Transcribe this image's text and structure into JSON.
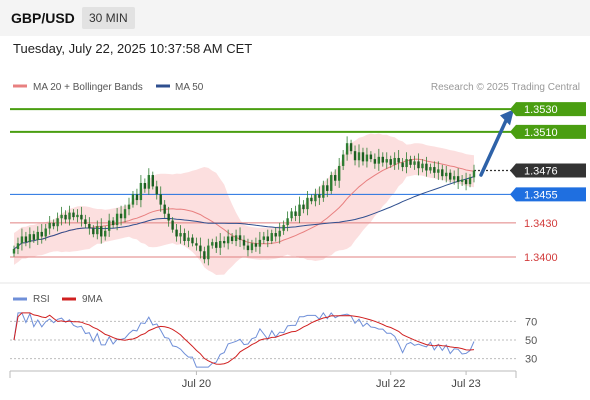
{
  "header": {
    "symbol": "GBP/USD",
    "timeframe": "30 MIN",
    "datetime": "Tuesday, July 22, 2025 10:37:58 AM CET"
  },
  "legend": {
    "bb_label": "MA 20 + Bollinger Bands",
    "ma50_label": "MA 50",
    "credit": "Research © 2025 Trading Central",
    "rsi_label": "RSI",
    "rsi_ma_label": "9MA"
  },
  "colors": {
    "candle": "#2e7d32",
    "ma20": "#e88080",
    "band_fill": "#fbd4d4",
    "ma50": "#2f4f8f",
    "resistance": "#4a9e11",
    "pivot": "#1f6fe0",
    "support": "#e08080",
    "current": "#333333",
    "arrow": "#2e62a8",
    "rsi": "#6f8fd8",
    "rsi_ma": "#d02020"
  },
  "chart_data": [
    {
      "type": "candlestick",
      "ylim": [
        1.3385,
        1.3545
      ],
      "x_ticks": [
        {
          "label": "Jul 20",
          "index": 46
        },
        {
          "label": "Jul 22",
          "index": 95
        },
        {
          "label": "Jul 23",
          "index": 114
        }
      ],
      "levels": [
        {
          "value": 1.353,
          "label": "1.3530",
          "kind": "resistance"
        },
        {
          "value": 1.351,
          "label": "1.3510",
          "kind": "resistance"
        },
        {
          "value": 1.3476,
          "label": "1.3476",
          "kind": "current"
        },
        {
          "value": 1.3455,
          "label": "1.3455",
          "kind": "pivot"
        },
        {
          "value": 1.343,
          "label": "1.3430",
          "kind": "support"
        },
        {
          "value": 1.34,
          "label": "1.3400",
          "kind": "support"
        }
      ],
      "forecast_arrow": {
        "from": 1.3472,
        "to": 1.3528
      },
      "closes": [
        1.3407,
        1.3412,
        1.3418,
        1.3413,
        1.342,
        1.3415,
        1.3422,
        1.3418,
        1.3425,
        1.343,
        1.3427,
        1.3434,
        1.3437,
        1.3433,
        1.3439,
        1.3435,
        1.3437,
        1.3433,
        1.3429,
        1.3425,
        1.342,
        1.3427,
        1.3418,
        1.3423,
        1.3432,
        1.3428,
        1.3438,
        1.3434,
        1.3442,
        1.3446,
        1.3455,
        1.345,
        1.3465,
        1.346,
        1.3472,
        1.3462,
        1.3455,
        1.3446,
        1.3438,
        1.3432,
        1.3424,
        1.3418,
        1.3421,
        1.3414,
        1.3417,
        1.3412,
        1.341,
        1.3405,
        1.3398,
        1.341,
        1.3413,
        1.3408,
        1.3414,
        1.3412,
        1.3418,
        1.3414,
        1.3419,
        1.3415,
        1.341,
        1.3406,
        1.3412,
        1.3409,
        1.3415,
        1.3418,
        1.3414,
        1.3421,
        1.3418,
        1.3423,
        1.3428,
        1.3434,
        1.344,
        1.3436,
        1.3446,
        1.3442,
        1.3452,
        1.3449,
        1.3455,
        1.3452,
        1.3463,
        1.3458,
        1.3472,
        1.3467,
        1.348,
        1.349,
        1.35,
        1.3493,
        1.3485,
        1.3492,
        1.3484,
        1.349,
        1.3486,
        1.3482,
        1.3488,
        1.3483,
        1.3486,
        1.3481,
        1.3487,
        1.3483,
        1.3479,
        1.3486,
        1.3481,
        1.3484,
        1.3478,
        1.3482,
        1.3476,
        1.3479,
        1.3474,
        1.3477,
        1.3471,
        1.3474,
        1.3468,
        1.3471,
        1.3466,
        1.3468,
        1.3464,
        1.347,
        1.3476
      ],
      "rsi_ylim": [
        20,
        80
      ],
      "rsi_ticks": [
        70,
        50,
        30
      ]
    }
  ]
}
